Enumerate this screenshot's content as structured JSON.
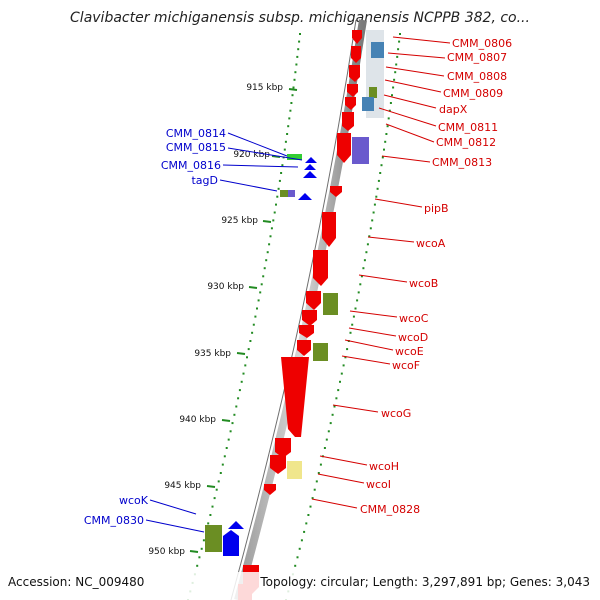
{
  "title": "Clavibacter michiganensis subsp. michiganensis NCPPB 382, co...",
  "footer": {
    "accession": "Accession: NC_009480",
    "topology": "Topology: circular; Length: 3,297,891 bp; Genes: 3,043"
  },
  "ticks": [
    "915 kbp",
    "920 kbp",
    "925 kbp",
    "930 kbp",
    "935 kbp",
    "940 kbp",
    "945 kbp",
    "950 kbp"
  ],
  "right_labels": [
    "CMM_0806",
    "CMM_0807",
    "CMM_0808",
    "CMM_0809",
    "dapX",
    "CMM_0811",
    "CMM_0812",
    "CMM_0813",
    "pipB",
    "wcoA",
    "wcoB",
    "wcoC",
    "wcoD",
    "wcoE",
    "wcoF",
    "wcoG",
    "wcoH",
    "wcoI",
    "CMM_0828"
  ],
  "left_labels": [
    "CMM_0814",
    "CMM_0815",
    "CMM_0816",
    "tagD",
    "wcoK",
    "CMM_0830"
  ],
  "colors": {
    "forward_gene": "#ee0000",
    "reverse_gene": "#0000ee",
    "right_label": "#d40000",
    "left_label": "#0000cc",
    "olive": "#6b8e23",
    "slate": "#6a5acd",
    "steel": "#4682b4",
    "khaki": "#f0e68c",
    "tick_green": "#228b22"
  }
}
